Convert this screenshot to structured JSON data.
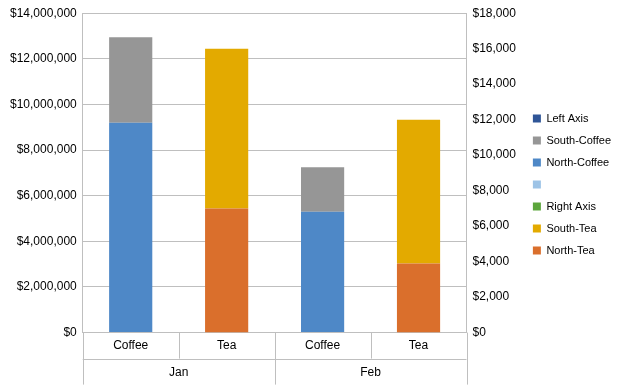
{
  "chart_data": {
    "type": "bar",
    "stacked": true,
    "grid": true,
    "legend": "right",
    "categories": [
      "Coffee",
      "Tea",
      "Coffee",
      "Tea"
    ],
    "category_groups": [
      "Jan",
      "Jan",
      "Feb",
      "Feb"
    ],
    "ylim": [
      0,
      14000000
    ],
    "yticks": [
      {
        "value": 0,
        "label": "$0"
      },
      {
        "value": 2000000,
        "label": "$2,000,000"
      },
      {
        "value": 4000000,
        "label": "$4,000,000"
      },
      {
        "value": 6000000,
        "label": "$6,000,000"
      },
      {
        "value": 8000000,
        "label": "$8,000,000"
      },
      {
        "value": 10000000,
        "label": "$10,000,000"
      },
      {
        "value": 12000000,
        "label": "$12,000,000"
      },
      {
        "value": 14000000,
        "label": "$14,000,000"
      }
    ],
    "y2lim": [
      0,
      18000
    ],
    "y2ticks": [
      {
        "value": 0,
        "label": "$0"
      },
      {
        "value": 2000,
        "label": "$2,000"
      },
      {
        "value": 4000,
        "label": "$4,000"
      },
      {
        "value": 6000,
        "label": "$6,000"
      },
      {
        "value": 8000,
        "label": "$8,000"
      },
      {
        "value": 10000,
        "label": "$10,000"
      },
      {
        "value": 12000,
        "label": "$12,000"
      },
      {
        "value": 14000,
        "label": "$14,000"
      },
      {
        "value": 16000,
        "label": "$16,000"
      },
      {
        "value": 18000,
        "label": "$18,000"
      }
    ],
    "series": [
      {
        "name": "Left Axis",
        "color": "#2F5597",
        "values": [
          null,
          null,
          null,
          null
        ]
      },
      {
        "name": "South-Coffee",
        "color": "#969696",
        "values": [
          3750000,
          null,
          1950000,
          null
        ]
      },
      {
        "name": "North-Coffee",
        "color": "#4E88C7",
        "values": [
          9200000,
          null,
          5300000,
          null
        ]
      },
      {
        "name": null,
        "color": "#9DC3E6",
        "values": [
          null,
          null,
          null,
          null
        ]
      },
      {
        "name": "Right Axis",
        "color": "#5CA63C",
        "axis": "y2",
        "values": [
          null,
          null,
          null,
          null
        ]
      },
      {
        "name": "South-Tea",
        "color": "#E3AA00",
        "axis": "y2",
        "values": [
          null,
          9000,
          null,
          8100
        ]
      },
      {
        "name": "North-Tea",
        "color": "#DA6F2C",
        "axis": "y2",
        "values": [
          null,
          7000,
          null,
          3900
        ]
      }
    ]
  }
}
